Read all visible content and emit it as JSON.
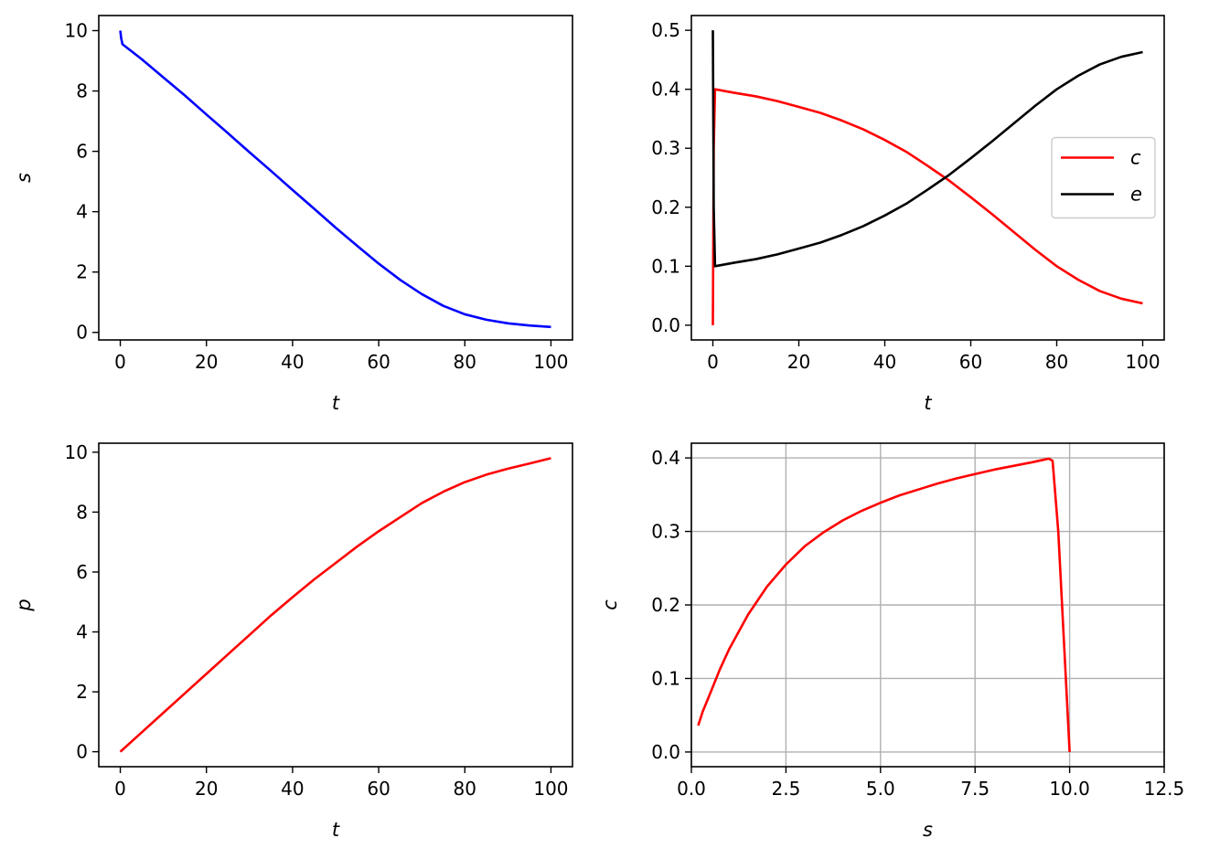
{
  "chart_data": [
    {
      "id": "s_vs_t",
      "type": "line",
      "title": "",
      "xlabel": "t",
      "ylabel": "s",
      "xlim": [
        -5,
        105
      ],
      "ylim": [
        -0.25,
        10.5
      ],
      "xticks": [
        0,
        20,
        40,
        60,
        80,
        100
      ],
      "xtick_labels": [
        "0",
        "20",
        "40",
        "60",
        "80",
        "100"
      ],
      "yticks": [
        0,
        2,
        4,
        6,
        8,
        10
      ],
      "ytick_labels": [
        "0",
        "2",
        "4",
        "6",
        "8",
        "10"
      ],
      "grid": false,
      "legend": null,
      "series": [
        {
          "color": "#0000ff",
          "x": [
            0,
            0.2,
            0.5,
            5,
            10,
            15,
            20,
            25,
            30,
            35,
            40,
            45,
            50,
            55,
            60,
            65,
            70,
            75,
            80,
            85,
            90,
            95,
            100
          ],
          "y": [
            10.0,
            9.75,
            9.55,
            9.05,
            8.45,
            7.85,
            7.22,
            6.6,
            5.97,
            5.35,
            4.72,
            4.1,
            3.47,
            2.87,
            2.28,
            1.74,
            1.27,
            0.88,
            0.6,
            0.42,
            0.3,
            0.23,
            0.18
          ]
        }
      ]
    },
    {
      "id": "ce_vs_t",
      "type": "line",
      "title": "",
      "xlabel": "t",
      "ylabel": "",
      "xlim": [
        -5,
        105
      ],
      "ylim": [
        -0.025,
        0.525
      ],
      "xticks": [
        0,
        20,
        40,
        60,
        80,
        100
      ],
      "xtick_labels": [
        "0",
        "20",
        "40",
        "60",
        "80",
        "100"
      ],
      "yticks": [
        0.0,
        0.1,
        0.2,
        0.3,
        0.4,
        0.5
      ],
      "ytick_labels": [
        "0.0",
        "0.1",
        "0.2",
        "0.3",
        "0.4",
        "0.5"
      ],
      "grid": false,
      "legend": "center-right",
      "series": [
        {
          "name": "c",
          "color": "#ff0000",
          "x": [
            0,
            0.2,
            0.5,
            5,
            10,
            15,
            20,
            25,
            30,
            35,
            40,
            45,
            50,
            55,
            60,
            65,
            70,
            75,
            80,
            85,
            90,
            95,
            100
          ],
          "y": [
            0.0,
            0.3,
            0.4,
            0.394,
            0.388,
            0.38,
            0.37,
            0.36,
            0.347,
            0.332,
            0.314,
            0.294,
            0.27,
            0.245,
            0.217,
            0.188,
            0.158,
            0.128,
            0.1,
            0.077,
            0.058,
            0.045,
            0.037
          ]
        },
        {
          "name": "e",
          "color": "#000000",
          "x": [
            0,
            0.2,
            0.5,
            5,
            10,
            15,
            20,
            25,
            30,
            35,
            40,
            45,
            50,
            55,
            60,
            65,
            70,
            75,
            80,
            85,
            90,
            95,
            100
          ],
          "y": [
            0.5,
            0.2,
            0.1,
            0.106,
            0.112,
            0.12,
            0.13,
            0.14,
            0.153,
            0.168,
            0.186,
            0.206,
            0.23,
            0.255,
            0.283,
            0.312,
            0.342,
            0.372,
            0.4,
            0.423,
            0.442,
            0.455,
            0.463
          ]
        }
      ]
    },
    {
      "id": "p_vs_t",
      "type": "line",
      "title": "",
      "xlabel": "t",
      "ylabel": "p",
      "xlim": [
        -5,
        105
      ],
      "ylim": [
        -0.5,
        10.3
      ],
      "xticks": [
        0,
        20,
        40,
        60,
        80,
        100
      ],
      "xtick_labels": [
        "0",
        "20",
        "40",
        "60",
        "80",
        "100"
      ],
      "yticks": [
        0,
        2,
        4,
        6,
        8,
        10
      ],
      "ytick_labels": [
        "0",
        "2",
        "4",
        "6",
        "8",
        "10"
      ],
      "grid": false,
      "legend": null,
      "series": [
        {
          "color": "#ff0000",
          "x": [
            0,
            5,
            10,
            15,
            20,
            25,
            30,
            35,
            40,
            45,
            50,
            55,
            60,
            65,
            70,
            75,
            80,
            85,
            90,
            95,
            100
          ],
          "y": [
            0.0,
            0.65,
            1.3,
            1.95,
            2.6,
            3.25,
            3.9,
            4.55,
            5.16,
            5.75,
            6.3,
            6.85,
            7.36,
            7.83,
            8.3,
            8.68,
            9.0,
            9.25,
            9.45,
            9.62,
            9.8
          ]
        }
      ]
    },
    {
      "id": "c_vs_s",
      "type": "line",
      "title": "",
      "xlabel": "s",
      "ylabel": "c",
      "xlim": [
        0,
        12.5
      ],
      "ylim": [
        -0.02,
        0.42
      ],
      "xticks": [
        0.0,
        2.5,
        5.0,
        7.5,
        10.0,
        12.5
      ],
      "xtick_labels": [
        "0.0",
        "2.5",
        "5.0",
        "7.5",
        "10.0",
        "12.5"
      ],
      "yticks": [
        0.0,
        0.1,
        0.2,
        0.3,
        0.4
      ],
      "ytick_labels": [
        "0.0",
        "0.1",
        "0.2",
        "0.3",
        "0.4"
      ],
      "grid": true,
      "legend": null,
      "series": [
        {
          "color": "#ff0000",
          "x": [
            0.18,
            0.3,
            0.5,
            0.75,
            1.0,
            1.5,
            2.0,
            2.5,
            3.0,
            3.5,
            4.0,
            4.5,
            5.0,
            5.5,
            6.0,
            6.5,
            7.0,
            7.5,
            8.0,
            8.5,
            9.0,
            9.45,
            9.55,
            9.7,
            9.85,
            10.0
          ],
          "y": [
            0.036,
            0.055,
            0.08,
            0.112,
            0.14,
            0.187,
            0.225,
            0.255,
            0.28,
            0.299,
            0.315,
            0.328,
            0.339,
            0.349,
            0.357,
            0.365,
            0.372,
            0.378,
            0.384,
            0.389,
            0.394,
            0.399,
            0.396,
            0.3,
            0.15,
            0.0
          ]
        }
      ]
    }
  ]
}
